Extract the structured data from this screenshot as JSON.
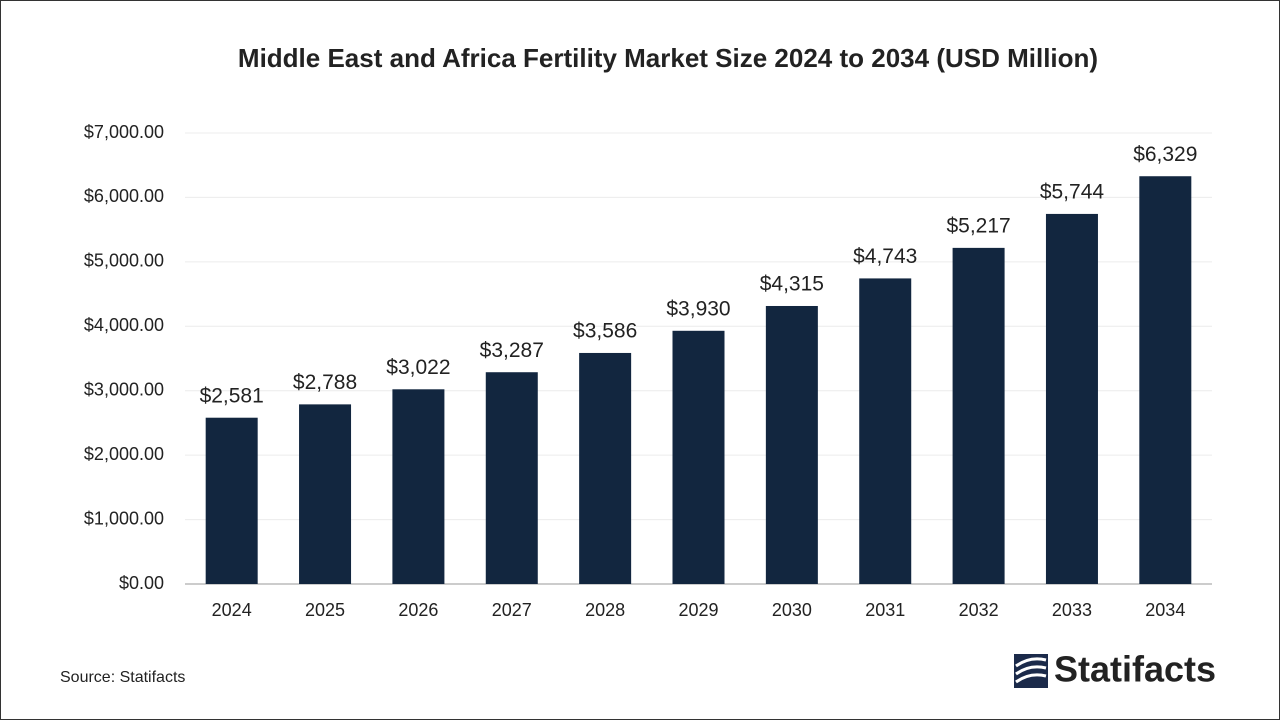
{
  "chart_data": {
    "type": "bar",
    "title": "Middle East and Africa Fertility Market Size 2024 to 2034  (USD Million)",
    "categories": [
      "2024",
      "2025",
      "2026",
      "2027",
      "2028",
      "2029",
      "2030",
      "2031",
      "2032",
      "2033",
      "2034"
    ],
    "values": [
      2581,
      2788,
      3022,
      3287,
      3586,
      3930,
      4315,
      4743,
      5217,
      5744,
      6329
    ],
    "value_labels": [
      "$2,581",
      "$2,788",
      "$3,022",
      "$3,287",
      "$3,586",
      "$3,930",
      "$4,315",
      "$4,743",
      "$5,217",
      "$5,744",
      "$6,329"
    ],
    "color": "#12263f",
    "ylim": [
      0,
      7000
    ],
    "yticks": [
      {
        "value": 0,
        "label": "$0.00"
      },
      {
        "value": 1000,
        "label": "$1,000.00"
      },
      {
        "value": 2000,
        "label": "$2,000.00"
      },
      {
        "value": 3000,
        "label": "$3,000.00"
      },
      {
        "value": 4000,
        "label": "$4,000.00"
      },
      {
        "value": 5000,
        "label": "$5,000.00"
      },
      {
        "value": 6000,
        "label": "$6,000.00"
      },
      {
        "value": 7000,
        "label": "$7,000.00"
      }
    ],
    "grid": true
  },
  "source": "Source: Statifacts",
  "logo": "Statifacts"
}
